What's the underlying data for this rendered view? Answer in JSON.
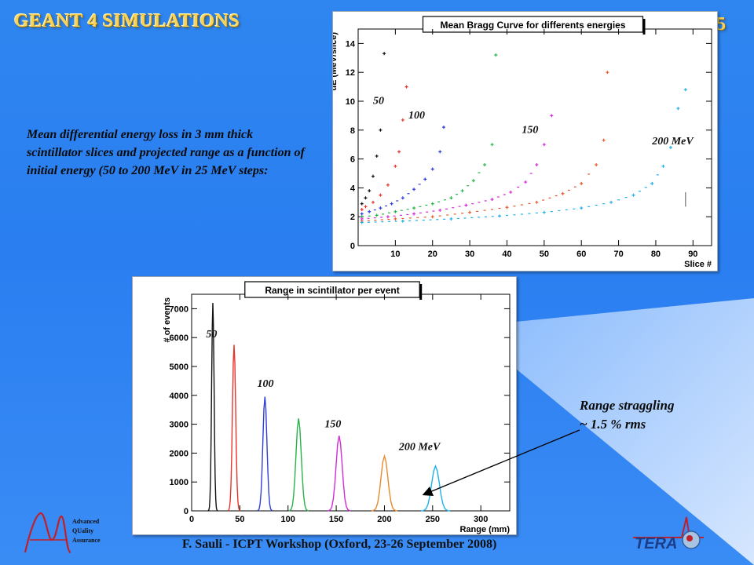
{
  "slide": {
    "title": "GEANT 4 SIMULATIONS",
    "number": "5",
    "description": "Mean differential energy loss in 3 mm thick scintillator slices and projected range as a function of initial energy (50 to 200 MeV in 25 MeV steps:",
    "note_line1": "Range straggling",
    "note_line2": "~ 1.5 % rms",
    "footer": "F. Sauli - ICPT Workshop (Oxford, 23-26 September 2008)",
    "logo_aqa_lines": [
      "Advanced",
      "QUality",
      "Assurance"
    ],
    "logo_tera": "TERA",
    "colors": {
      "background": "#2f86f0",
      "title": "#f6d35c"
    }
  },
  "chart_data": [
    {
      "type": "scatter",
      "title": "Mean Bragg Curve for differents energies",
      "xlabel": "Slice #",
      "ylabel": "dE (MeV/slice)",
      "xlim": [
        0,
        95
      ],
      "ylim": [
        0,
        15
      ],
      "xticks": [
        10,
        20,
        30,
        40,
        50,
        60,
        70,
        80,
        90
      ],
      "yticks": [
        0,
        2,
        4,
        6,
        8,
        10,
        12,
        14
      ],
      "grid": false,
      "annotations": [
        {
          "text": "50",
          "x": 4,
          "y": 9.8
        },
        {
          "text": "100",
          "x": 13.5,
          "y": 8.8
        },
        {
          "text": "150",
          "x": 44,
          "y": 7.8
        },
        {
          "text": "200 MeV",
          "x": 79,
          "y": 7.0
        }
      ],
      "series": [
        {
          "color": "#111111",
          "x": [
            1,
            2,
            3,
            4,
            5,
            6,
            7
          ],
          "y": [
            2.9,
            3.3,
            3.8,
            4.8,
            6.2,
            8.0,
            13.3
          ]
        },
        {
          "color": "#e8352b",
          "x": [
            1,
            2,
            4,
            6,
            8,
            10,
            11,
            12,
            13
          ],
          "y": [
            2.5,
            2.7,
            3.0,
            3.5,
            4.2,
            5.5,
            6.5,
            8.7,
            11.0
          ]
        },
        {
          "color": "#2f3fd8",
          "x": [
            1,
            3,
            6,
            9,
            12,
            15,
            18,
            20,
            22,
            23
          ],
          "y": [
            2.2,
            2.35,
            2.6,
            2.9,
            3.3,
            3.9,
            4.6,
            5.3,
            6.5,
            8.2
          ]
        },
        {
          "color": "#27b34a",
          "x": [
            1,
            5,
            10,
            15,
            20,
            25,
            28,
            31,
            34,
            36,
            37
          ],
          "y": [
            2.0,
            2.1,
            2.35,
            2.6,
            2.9,
            3.3,
            3.8,
            4.5,
            5.6,
            7.0,
            13.2
          ]
        },
        {
          "color": "#d62ad8",
          "x": [
            1,
            8,
            15,
            22,
            29,
            36,
            41,
            45,
            48,
            50,
            52
          ],
          "y": [
            1.85,
            2.0,
            2.2,
            2.45,
            2.8,
            3.2,
            3.7,
            4.4,
            5.6,
            7.0,
            9.0
          ]
        },
        {
          "color": "#e85a2b",
          "x": [
            1,
            10,
            20,
            30,
            40,
            48,
            55,
            60,
            64,
            66,
            67
          ],
          "y": [
            1.7,
            1.85,
            2.0,
            2.3,
            2.65,
            3.0,
            3.6,
            4.3,
            5.6,
            7.3,
            12.0
          ]
        },
        {
          "color": "#1fb0e8",
          "x": [
            1,
            12,
            25,
            38,
            50,
            60,
            68,
            74,
            79,
            82,
            84,
            86,
            88
          ],
          "y": [
            1.6,
            1.7,
            1.85,
            2.05,
            2.3,
            2.6,
            3.0,
            3.5,
            4.3,
            5.5,
            6.8,
            9.5,
            10.8
          ]
        }
      ]
    },
    {
      "type": "line",
      "title": "Range in scintillator per event",
      "xlabel": "Range (mm)",
      "ylabel": "# of events",
      "xlim": [
        0,
        330
      ],
      "ylim": [
        0,
        7500
      ],
      "xticks": [
        0,
        50,
        100,
        150,
        200,
        250,
        300
      ],
      "yticks": [
        0,
        1000,
        2000,
        3000,
        4000,
        5000,
        6000,
        7000
      ],
      "grid": false,
      "annotations": [
        {
          "text": "50",
          "x": 15,
          "y": 6000
        },
        {
          "text": "100",
          "x": 68,
          "y": 4300
        },
        {
          "text": "150",
          "x": 138,
          "y": 2900
        },
        {
          "text": "200 MeV",
          "x": 215,
          "y": 2100
        }
      ],
      "series": [
        {
          "color": "#111111",
          "peak": 22,
          "height": 7200,
          "width": 1.2
        },
        {
          "color": "#e8352b",
          "peak": 44,
          "height": 5750,
          "width": 1.6
        },
        {
          "color": "#2f3fd8",
          "peak": 76,
          "height": 3950,
          "width": 2.0
        },
        {
          "color": "#27b34a",
          "peak": 111,
          "height": 3200,
          "width": 2.6
        },
        {
          "color": "#d62ad8",
          "peak": 153,
          "height": 2600,
          "width": 3.0
        },
        {
          "color": "#e88a2b",
          "peak": 200,
          "height": 1900,
          "width": 3.4
        },
        {
          "color": "#1fb0e8",
          "peak": 253,
          "height": 1550,
          "width": 3.8
        }
      ]
    }
  ]
}
